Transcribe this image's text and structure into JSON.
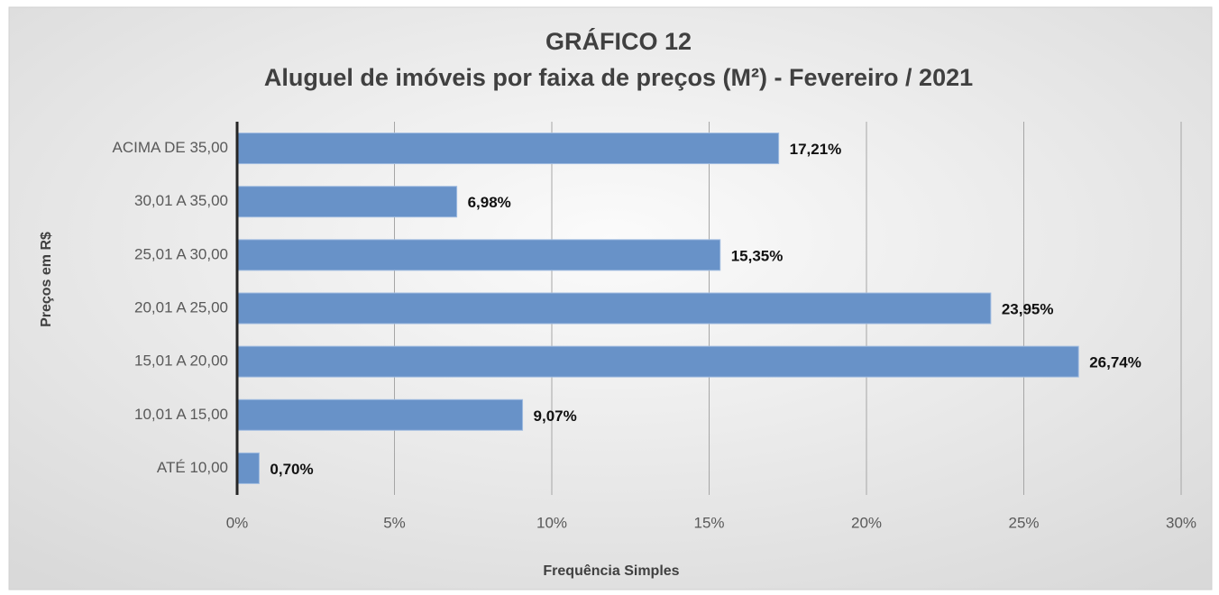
{
  "chart_data": {
    "type": "barh",
    "title": "GRÁFICO 12",
    "subtitle": "Aluguel de imóveis por faixa de preços (M²) -  Fevereiro /  2021",
    "x_label": "Frequência Simples",
    "y_label": "Preços em R$",
    "categories": [
      "ACIMA DE 35,00",
      "30,01 A 35,00",
      "25,01 A 30,00",
      "20,01 A 25,00",
      "15,01 A 20,00",
      "10,01 A 15,00",
      "ATÉ 10,00"
    ],
    "values": [
      17.21,
      6.98,
      15.35,
      23.95,
      26.74,
      9.07,
      0.7
    ],
    "value_labels": [
      "17,21%",
      "6,98%",
      "15,35%",
      "23,95%",
      "26,74%",
      "9,07%",
      "0,70%"
    ],
    "color": "#6892c8",
    "xlim": [
      0,
      30
    ],
    "xticks": [
      {
        "value": 0,
        "label": "0%"
      },
      {
        "value": 5,
        "label": "5%"
      },
      {
        "value": 10,
        "label": "10%"
      },
      {
        "value": 15,
        "label": "15%"
      },
      {
        "value": 20,
        "label": "20%"
      },
      {
        "value": 25,
        "label": "25%"
      },
      {
        "value": 30,
        "label": "30%"
      }
    ],
    "grid": true
  }
}
